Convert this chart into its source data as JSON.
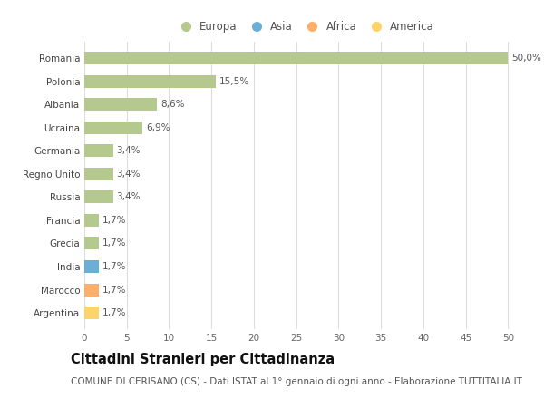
{
  "countries": [
    "Romania",
    "Polonia",
    "Albania",
    "Ucraina",
    "Germania",
    "Regno Unito",
    "Russia",
    "Francia",
    "Grecia",
    "India",
    "Marocco",
    "Argentina"
  ],
  "values": [
    50.0,
    15.5,
    8.6,
    6.9,
    3.4,
    3.4,
    3.4,
    1.7,
    1.7,
    1.7,
    1.7,
    1.7
  ],
  "labels": [
    "50,0%",
    "15,5%",
    "8,6%",
    "6,9%",
    "3,4%",
    "3,4%",
    "3,4%",
    "1,7%",
    "1,7%",
    "1,7%",
    "1,7%",
    "1,7%"
  ],
  "colors": [
    "#b5c98e",
    "#b5c98e",
    "#b5c98e",
    "#b5c98e",
    "#b5c98e",
    "#b5c98e",
    "#b5c98e",
    "#b5c98e",
    "#b5c98e",
    "#6baed6",
    "#fdae6b",
    "#fdd46b"
  ],
  "legend": [
    {
      "label": "Europa",
      "color": "#b5c98e"
    },
    {
      "label": "Asia",
      "color": "#6baed6"
    },
    {
      "label": "Africa",
      "color": "#fdae6b"
    },
    {
      "label": "America",
      "color": "#fdd46b"
    }
  ],
  "xlim": [
    0,
    52
  ],
  "xticks": [
    0,
    5,
    10,
    15,
    20,
    25,
    30,
    35,
    40,
    45,
    50
  ],
  "title": "Cittadini Stranieri per Cittadinanza",
  "subtitle": "COMUNE DI CERISANO (CS) - Dati ISTAT al 1° gennaio di ogni anno - Elaborazione TUTTITALIA.IT",
  "background_color": "#ffffff",
  "grid_color": "#dddddd",
  "bar_height": 0.55,
  "title_fontsize": 10.5,
  "subtitle_fontsize": 7.5,
  "label_fontsize": 7.5,
  "tick_fontsize": 7.5,
  "legend_fontsize": 8.5
}
